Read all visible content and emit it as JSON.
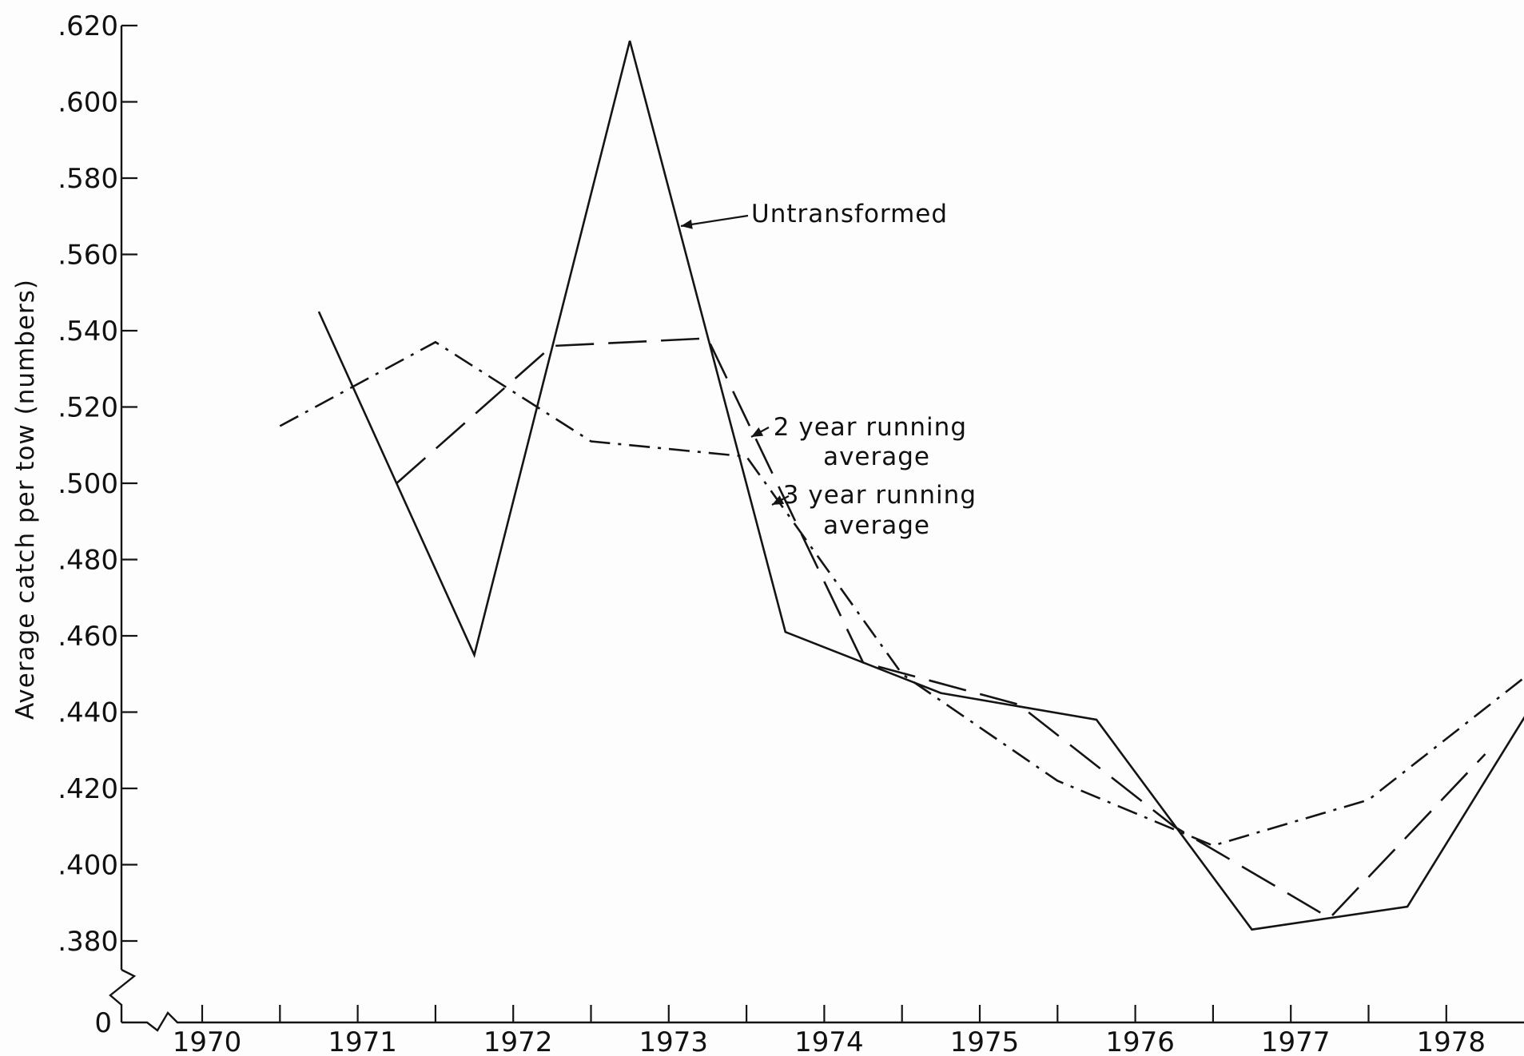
{
  "chart_data": {
    "type": "line",
    "title": "",
    "xlabel": "",
    "ylabel": "Average catch per tow (numbers)",
    "xlim": [
      1969.7,
      1978.75
    ],
    "ylim": [
      0.38,
      0.62
    ],
    "y_axis_break": true,
    "y_ticks": [
      0.38,
      0.4,
      0.42,
      0.44,
      0.46,
      0.48,
      0.5,
      0.52,
      0.54,
      0.56,
      0.58,
      0.6,
      0.62
    ],
    "y_tick_labels": [
      ".380",
      ".400",
      ".420",
      ".440",
      ".460",
      ".480",
      ".500",
      ".520",
      ".540",
      ".560",
      ".580",
      ".600",
      ".620"
    ],
    "y_zero_label": "0",
    "x_tick_labels": [
      "1970",
      "1971",
      "1972",
      "1973",
      "1974",
      "1975",
      "1976",
      "1977",
      "1978"
    ],
    "x_tick_positions": [
      1970,
      1971,
      1972,
      1973,
      1974,
      1975,
      1976,
      1977,
      1978
    ],
    "x_minor_ticks": [
      1970.5,
      1971.5,
      1972.5,
      1973.5,
      1974.5,
      1975.5,
      1976.5,
      1977.5
    ],
    "series": [
      {
        "name": "Untransformed",
        "style": "solid",
        "x": [
          1970.75,
          1971.75,
          1972.75,
          1973.75,
          1974.75,
          1975.75,
          1976.75,
          1977.75,
          1978.75
        ],
        "y": [
          0.545,
          0.455,
          0.616,
          0.461,
          0.445,
          0.438,
          0.383,
          0.389,
          0.455
        ]
      },
      {
        "name": "2 year running average",
        "style": "dashed",
        "x": [
          1971.25,
          1972.25,
          1973.25,
          1974.25,
          1975.25,
          1976.25,
          1977.25,
          1978.25
        ],
        "y": [
          0.5,
          0.536,
          0.538,
          0.453,
          0.442,
          0.41,
          0.386,
          0.429
        ]
      },
      {
        "name": "3 year running average",
        "style": "dash-dot",
        "x": [
          1970.5,
          1971.5,
          1972.5,
          1973.5,
          1974.5,
          1975.5,
          1976.5,
          1977.5,
          1978.5
        ],
        "y": [
          0.515,
          0.537,
          0.511,
          0.507,
          0.45,
          0.422,
          0.405,
          0.417,
          0.449
        ]
      }
    ],
    "annotations": [
      {
        "lines": [
          "Untransformed"
        ],
        "series": "Untransformed"
      },
      {
        "lines": [
          "2 year running",
          "average"
        ],
        "series": "2 year running average"
      },
      {
        "lines": [
          "3 year running",
          "average"
        ],
        "series": "3 year running average"
      }
    ],
    "grid": false,
    "legend": "none"
  }
}
